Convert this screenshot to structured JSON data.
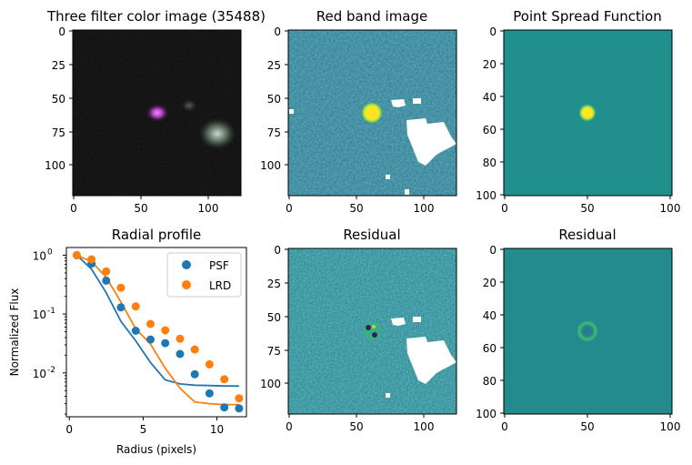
{
  "panels": {
    "color": {
      "title": "Three filter color image (35488)",
      "xticks": [
        "0",
        "50",
        "100"
      ],
      "yticks": [
        "0",
        "25",
        "50",
        "75",
        "100"
      ]
    },
    "red": {
      "title": "Red band image",
      "xticks": [
        "0",
        "50",
        "100"
      ],
      "yticks": [
        "0",
        "25",
        "50",
        "75",
        "100"
      ]
    },
    "psf": {
      "title": "Point Spread Function",
      "xticks": [
        "0",
        "50",
        "100"
      ],
      "yticks": [
        "0",
        "20",
        "40",
        "60",
        "80",
        "100"
      ]
    },
    "resid1": {
      "title": "Residual",
      "xticks": [
        "0",
        "50",
        "100"
      ],
      "yticks": [
        "0",
        "25",
        "50",
        "75",
        "100"
      ]
    },
    "resid2": {
      "title": "Residual",
      "xticks": [
        "0",
        "50",
        "100"
      ],
      "yticks": [
        "0",
        "20",
        "40",
        "60",
        "80",
        "100"
      ]
    }
  },
  "colors": {
    "psf": "#1f77b4",
    "lrd": "#ff7f0e",
    "viridis_bg": "#21908d",
    "viridis_peak": "#fde725"
  },
  "chart_data": {
    "type": "scatter",
    "title": "Radial profile",
    "xlabel": "Radius (pixels)",
    "ylabel": "Normalized Flux",
    "yscale": "log",
    "xlim": [
      -0.2,
      12.0
    ],
    "ylim": [
      0.0018,
      1.35
    ],
    "xticks": [
      0,
      5,
      10
    ],
    "yticks": [
      {
        "v": 1,
        "label": "10^0"
      },
      {
        "v": 0.1,
        "label": "10^-1"
      },
      {
        "v": 0.01,
        "label": "10^-2"
      }
    ],
    "legend": {
      "position": "top-right",
      "entries": [
        "PSF",
        "LRD"
      ]
    },
    "series": [
      {
        "name": "PSF",
        "x": [
          0.5,
          1.5,
          2.5,
          3.5,
          4.5,
          5.5,
          6.5,
          7.5,
          8.5,
          9.5,
          10.5,
          11.5
        ],
        "y": [
          1.0,
          0.72,
          0.37,
          0.13,
          0.052,
          0.037,
          0.032,
          0.021,
          0.0095,
          0.0045,
          0.0026,
          0.0025
        ]
      },
      {
        "name": "LRD",
        "x": [
          0.5,
          1.5,
          2.5,
          3.5,
          4.5,
          5.5,
          6.5,
          7.5,
          8.5,
          9.5,
          10.5,
          11.5
        ],
        "y": [
          1.0,
          0.85,
          0.53,
          0.28,
          0.135,
          0.068,
          0.053,
          0.038,
          0.025,
          0.014,
          0.0078,
          0.0037
        ]
      }
    ],
    "model_lines": [
      {
        "name": "PSF",
        "x": [
          0.5,
          1.5,
          2.5,
          3.5,
          4.5,
          5.5,
          6.5,
          7.5,
          8.5,
          9.5,
          10.5,
          11.5
        ],
        "y": [
          1.0,
          0.58,
          0.23,
          0.075,
          0.035,
          0.015,
          0.0076,
          0.0065,
          0.0062,
          0.0061,
          0.006,
          0.006
        ]
      },
      {
        "name": "LRD",
        "x": [
          0.5,
          1.5,
          2.5,
          3.5,
          4.5,
          5.5,
          6.5,
          7.5,
          8.5,
          9.5,
          10.5,
          11.5
        ],
        "y": [
          1.0,
          0.78,
          0.42,
          0.16,
          0.056,
          0.031,
          0.012,
          0.0055,
          0.0032,
          0.003,
          0.0029,
          0.0029
        ]
      }
    ]
  }
}
